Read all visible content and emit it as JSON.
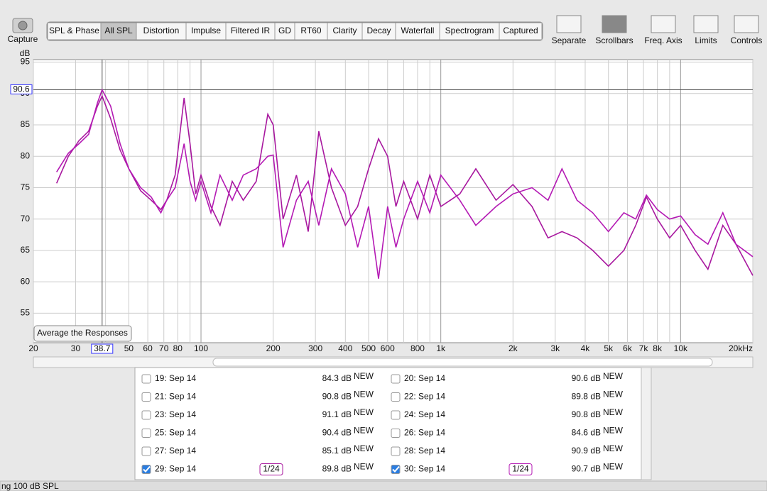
{
  "toolbar": {
    "capture": "Capture",
    "tabs": [
      "SPL & Phase",
      "All SPL",
      "Distortion",
      "Impulse",
      "Filtered IR",
      "GD",
      "RT60",
      "Clarity",
      "Decay",
      "Waterfall",
      "Spectrogram",
      "Captured"
    ],
    "selected_tab": 1,
    "tools": [
      "Separate",
      "Scrollbars",
      "Freq. Axis",
      "Limits",
      "Controls"
    ]
  },
  "chart_data": {
    "type": "line",
    "ylabel": "dB",
    "log_x": true,
    "grid": true,
    "xlim": [
      20,
      20000
    ],
    "ylim": [
      50.3,
      95.4
    ],
    "yticks": [
      55,
      60,
      65,
      70,
      75,
      80,
      85,
      90,
      95
    ],
    "xticks": [
      20,
      30,
      50,
      60,
      70,
      80,
      100,
      200,
      300,
      400,
      500,
      600,
      800,
      {
        "value": 1000,
        "label": "1k"
      },
      {
        "value": 2000,
        "label": "2k"
      },
      {
        "value": 3000,
        "label": "3k"
      },
      {
        "value": 4000,
        "label": "4k"
      },
      {
        "value": 5000,
        "label": "5k"
      },
      {
        "value": 6000,
        "label": "6k"
      },
      {
        "value": 7000,
        "label": "7k"
      },
      {
        "value": 8000,
        "label": "8k"
      },
      {
        "value": 10000,
        "label": "10k"
      },
      {
        "value": 20000,
        "label": "20kHz"
      }
    ],
    "xminor_ticks": [
      40,
      90,
      700,
      900,
      9000
    ],
    "cursor": {
      "x": 38.7,
      "y": 90.6
    },
    "button": "Average the Responses",
    "x": [
      25,
      28,
      31,
      34,
      37,
      38.7,
      42,
      46,
      50,
      56,
      62,
      68,
      72,
      78,
      85,
      90,
      95,
      100,
      110,
      120,
      135,
      150,
      170,
      190,
      200,
      220,
      250,
      280,
      310,
      350,
      400,
      450,
      500,
      550,
      600,
      650,
      700,
      800,
      900,
      1000,
      1200,
      1400,
      1700,
      2000,
      2400,
      2800,
      3200,
      3700,
      4300,
      5000,
      5800,
      6500,
      7200,
      8000,
      9000,
      10000,
      11500,
      13000,
      15000,
      17000,
      20000
    ],
    "series": [
      {
        "color": "#a8189f",
        "values": [
          75.7,
          80,
          82.5,
          84,
          88,
          89.6,
          86,
          81,
          78,
          74.5,
          73,
          71.5,
          73,
          77,
          89.3,
          82,
          74,
          77,
          72,
          69,
          76,
          73,
          76,
          86.7,
          85,
          70,
          77,
          68,
          84,
          75,
          69,
          72,
          78,
          82.8,
          80,
          72,
          76,
          70,
          77,
          72,
          74,
          78,
          73,
          75.5,
          72,
          67,
          68,
          67,
          65,
          62.5,
          65,
          69,
          73.5,
          70,
          67,
          69,
          65,
          62,
          69,
          66,
          61
        ]
      },
      {
        "color": "#b41ab4",
        "values": [
          77.5,
          80.5,
          82,
          83.5,
          88.5,
          90.6,
          88,
          82,
          78,
          75,
          73.5,
          71,
          73,
          75,
          82,
          76,
          73,
          76,
          71,
          77,
          73,
          77,
          78,
          80,
          80.2,
          65.5,
          73,
          76,
          69,
          78,
          74,
          65.5,
          72,
          60.5,
          72,
          65.5,
          70,
          76,
          71,
          77,
          73,
          69,
          72,
          74,
          75,
          73,
          78,
          73,
          71,
          68,
          71,
          70,
          73.8,
          71.5,
          70,
          70.5,
          67.5,
          66,
          71,
          66,
          64
        ]
      }
    ]
  },
  "measurements": [
    {
      "label": "19: Sep 14",
      "level": "84.3 dB",
      "badge": "NEW",
      "color": "#c0101a",
      "checked": false
    },
    {
      "label": "20: Sep 14",
      "level": "90.6 dB",
      "badge": "NEW",
      "color": "#8e2cb4",
      "checked": false
    },
    {
      "label": "21: Sep 14",
      "level": "90.8 dB",
      "badge": "NEW",
      "color": "#22a04a",
      "checked": false
    },
    {
      "label": "22: Sep 14",
      "level": "89.8 dB",
      "badge": "NEW",
      "color": "#9a2ab0",
      "checked": false
    },
    {
      "label": "23: Sep 14",
      "level": "91.1 dB",
      "badge": "NEW",
      "color": "#13706e",
      "checked": false
    },
    {
      "label": "24: Sep 14",
      "level": "90.8 dB",
      "badge": "NEW",
      "color": "#2a2ab4",
      "checked": false
    },
    {
      "label": "25: Sep 14",
      "level": "90.4 dB",
      "badge": "NEW",
      "color": "#a88a12",
      "checked": false
    },
    {
      "label": "26: Sep 14",
      "level": "84.6 dB",
      "badge": "NEW",
      "color": "#3a88a0",
      "checked": false
    },
    {
      "label": "27: Sep 14",
      "level": "85.1 dB",
      "badge": "NEW",
      "color": "#167a22",
      "checked": false
    },
    {
      "label": "28: Sep 14",
      "level": "90.9 dB",
      "badge": "NEW",
      "color": "#9a2a9a",
      "checked": false
    },
    {
      "label": "29: Sep 14",
      "level": "89.8 dB",
      "badge": "NEW",
      "color": "#a8189f",
      "checked": true,
      "smoothing": "1/24"
    },
    {
      "label": "30: Sep 14",
      "level": "90.7 dB",
      "badge": "NEW",
      "color": "#b41ab4",
      "checked": true,
      "smoothing": "1/24"
    }
  ],
  "status_bar": "ng 100 dB SPL"
}
